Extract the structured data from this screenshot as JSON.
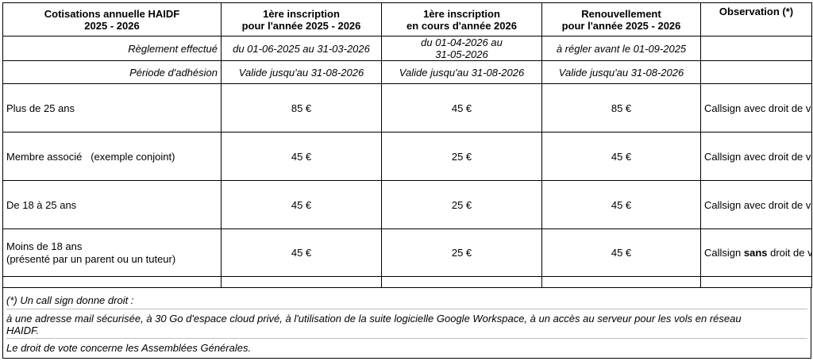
{
  "header": {
    "col1_line1": "Cotisations annuelle HAIDF",
    "col1_line2": "2025 - 2026",
    "col2_line1": "1ère inscription",
    "col2_line2": "pour l'année 2025 - 2026",
    "col3_line1": "1ère inscription",
    "col3_line2": "en cours d'année 2026",
    "col4_line1": "Renouvellement",
    "col4_line2": "pour l'année 2025 - 2026",
    "col5": "Observation (*)"
  },
  "reglement": {
    "label": "Règlement effectué",
    "col2": "du 01-06-2025 au 31-03-2026",
    "col3_line1": "du 01-04-2026 au",
    "col3_line2": "31-05-2026",
    "col4": "à régler avant le 01-09-2025"
  },
  "periode": {
    "label": "Période d'adhésion",
    "col2": "Valide jusqu'au 31-08-2026",
    "col3": "Valide jusqu'au 31-08-2026",
    "col4": "Valide jusqu'au 31-08-2026"
  },
  "rows": [
    {
      "label": "Plus de 25 ans",
      "first": "85 €",
      "mid": "45 €",
      "renew": "85 €",
      "obs": "Callsign avec droit de vote"
    },
    {
      "label": "Membre associé   (exemple conjoint)",
      "first": "45 €",
      "mid": "25 €",
      "renew": "45 €",
      "obs": "Callsign avec droit de vote"
    },
    {
      "label": "De 18 à 25 ans",
      "first": "45 €",
      "mid": "25 €",
      "renew": "45 €",
      "obs": "Callsign avec droit de vote"
    },
    {
      "label_line1": "Moins de 18 ans",
      "label_line2": "(présenté par un parent ou un tuteur)",
      "first": "45 €",
      "mid": "25 €",
      "renew": "45 €",
      "obs_pre": "Callsign ",
      "obs_bold": "sans",
      "obs_post": " droit de vote"
    }
  ],
  "footnote": {
    "line1": "(*) Un call sign donne droit :",
    "line2": "à une adresse mail sécurisée, à 30 Go d'espace cloud privé, à l'utilisation de la suite logicielle Google Workspace, à un accès au serveur pour les vols en réseau",
    "line3": "HAIDF.",
    "line4": "Le droit de vote concerne les Assemblées Générales."
  }
}
